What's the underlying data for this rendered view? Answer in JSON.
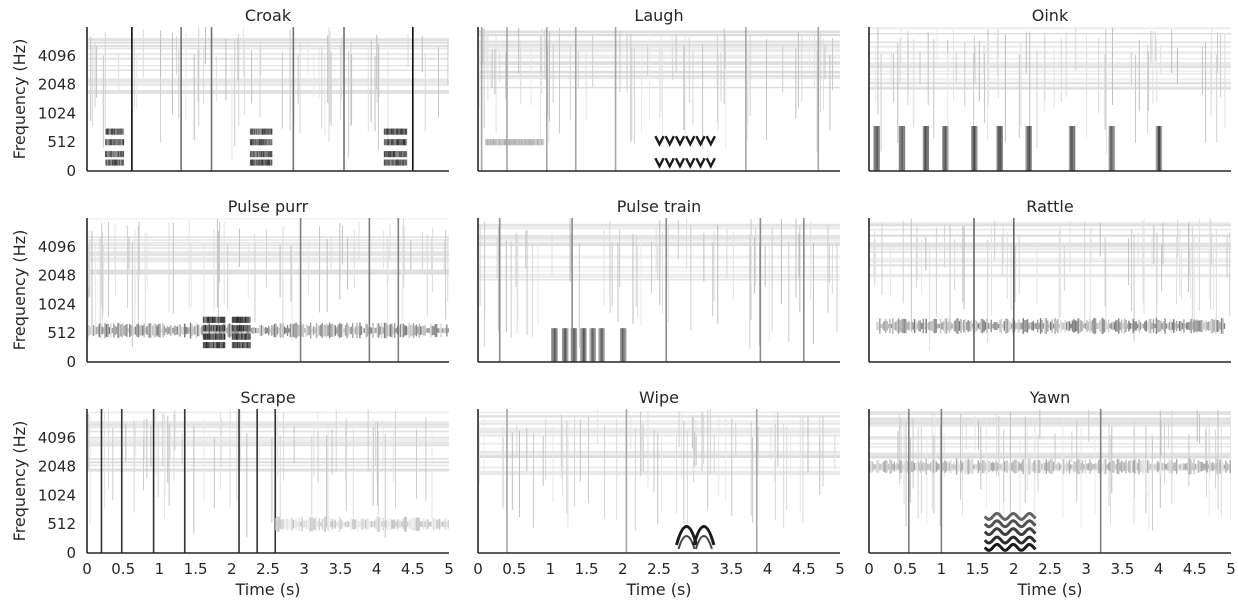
{
  "figure": {
    "ylabel": "Frequency (Hz)",
    "xlabel": "Time (s)",
    "colors": {
      "background": "#ffffff",
      "ink": "#262626",
      "spectrogram_cmap": "Greys"
    }
  },
  "chart_data": [
    {
      "type": "heatmap",
      "title": "Croak",
      "x_ticks": [
        "0",
        "0.5",
        "1",
        "1.5",
        "2",
        "2.5",
        "3",
        "3.5",
        "4",
        "4.5",
        "5"
      ],
      "y_ticks": [
        "0",
        "512",
        "1024",
        "2048",
        "4096"
      ],
      "xlim": [
        0,
        5
      ],
      "show_ylabel": true,
      "show_xlabel": false,
      "show_xticks": false,
      "events": [
        {
          "kind": "stack",
          "t0": 0.25,
          "t1": 0.5,
          "freqs": [
            150,
            300,
            512,
            700
          ],
          "strength": 0.8
        },
        {
          "kind": "stack",
          "t0": 2.25,
          "t1": 2.55,
          "freqs": [
            150,
            300,
            512,
            700
          ],
          "strength": 0.8
        },
        {
          "kind": "stack",
          "t0": 4.1,
          "t1": 4.4,
          "freqs": [
            150,
            300,
            512,
            700
          ],
          "strength": 0.8
        },
        {
          "kind": "vline",
          "times": [
            0.62,
            4.5
          ],
          "strength": 0.95
        },
        {
          "kind": "vline",
          "times": [
            1.3,
            1.72,
            2.85,
            3.55
          ],
          "strength": 0.55
        }
      ]
    },
    {
      "type": "heatmap",
      "title": "Laugh",
      "x_ticks": [
        "0",
        "0.5",
        "1",
        "1.5",
        "2",
        "2.5",
        "3",
        "3.5",
        "4",
        "4.5",
        "5"
      ],
      "y_ticks": [
        "0",
        "512",
        "1024",
        "2048",
        "4096"
      ],
      "xlim": [
        0,
        5
      ],
      "show_ylabel": false,
      "show_xlabel": false,
      "show_xticks": false,
      "events": [
        {
          "kind": "stack",
          "t0": 0.1,
          "t1": 0.9,
          "freqs": [
            512
          ],
          "strength": 0.35
        },
        {
          "kind": "chevrons",
          "t0": 2.45,
          "t1": 3.3,
          "freqs": [
            120,
            512
          ],
          "strength": 0.9
        },
        {
          "kind": "vline",
          "times": [
            0.05,
            0.4,
            0.95,
            1.35,
            1.9,
            3.7,
            4.7
          ],
          "strength": 0.35
        }
      ]
    },
    {
      "type": "heatmap",
      "title": "Oink",
      "x_ticks": [
        "0",
        "0.5",
        "1",
        "1.5",
        "2",
        "2.5",
        "3",
        "3.5",
        "4",
        "4.5",
        "5"
      ],
      "y_ticks": [
        "0",
        "512",
        "1024",
        "2048",
        "4096"
      ],
      "xlim": [
        0,
        5
      ],
      "show_ylabel": false,
      "show_xlabel": false,
      "show_xticks": false,
      "events": [
        {
          "kind": "pulses",
          "times": [
            0.1,
            0.45,
            0.78,
            1.05,
            1.45,
            1.8,
            2.2,
            2.8,
            3.35,
            4.0
          ],
          "fmax": 800,
          "strength": 0.85
        }
      ]
    },
    {
      "type": "heatmap",
      "title": "Pulse purr",
      "x_ticks": [
        "0",
        "0.5",
        "1",
        "1.5",
        "2",
        "2.5",
        "3",
        "3.5",
        "4",
        "4.5",
        "5"
      ],
      "y_ticks": [
        "0",
        "512",
        "1024",
        "2048",
        "4096"
      ],
      "xlim": [
        0,
        5
      ],
      "show_ylabel": true,
      "show_xlabel": false,
      "show_xticks": false,
      "events": [
        {
          "kind": "band",
          "t0": 0,
          "t1": 5,
          "freq": 560,
          "strength": 0.45
        },
        {
          "kind": "stack",
          "t0": 1.6,
          "t1": 1.9,
          "freqs": [
            300,
            450,
            600,
            750
          ],
          "strength": 0.85
        },
        {
          "kind": "stack",
          "t0": 2.0,
          "t1": 2.25,
          "freqs": [
            300,
            450,
            600,
            750
          ],
          "strength": 0.85
        },
        {
          "kind": "vline",
          "times": [
            2.95,
            3.9,
            4.3
          ],
          "strength": 0.5
        }
      ]
    },
    {
      "type": "heatmap",
      "title": "Pulse train",
      "x_ticks": [
        "0",
        "0.5",
        "1",
        "1.5",
        "2",
        "2.5",
        "3",
        "3.5",
        "4",
        "4.5",
        "5"
      ],
      "y_ticks": [
        "0",
        "512",
        "1024",
        "2048",
        "4096"
      ],
      "xlim": [
        0,
        5
      ],
      "show_ylabel": false,
      "show_xlabel": false,
      "show_xticks": false,
      "events": [
        {
          "kind": "pulses",
          "times": [
            1.05,
            1.2,
            1.32,
            1.45,
            1.58,
            1.7,
            2.0
          ],
          "fmax": 600,
          "strength": 0.8
        },
        {
          "kind": "vline",
          "times": [
            0.3,
            1.3,
            2.6,
            3.9,
            4.5
          ],
          "strength": 0.45
        }
      ]
    },
    {
      "type": "heatmap",
      "title": "Rattle",
      "x_ticks": [
        "0",
        "0.5",
        "1",
        "1.5",
        "2",
        "2.5",
        "3",
        "3.5",
        "4",
        "4.5",
        "5"
      ],
      "y_ticks": [
        "0",
        "512",
        "1024",
        "2048",
        "4096"
      ],
      "xlim": [
        0,
        5
      ],
      "show_ylabel": false,
      "show_xlabel": false,
      "show_xticks": false,
      "events": [
        {
          "kind": "band",
          "t0": 0.1,
          "t1": 4.9,
          "freq": 640,
          "strength": 0.45
        },
        {
          "kind": "vline",
          "times": [
            1.45,
            2.0
          ],
          "strength": 0.6
        }
      ]
    },
    {
      "type": "heatmap",
      "title": "Scrape",
      "x_ticks": [
        "0",
        "0.5",
        "1",
        "1.5",
        "2",
        "2.5",
        "3",
        "3.5",
        "4",
        "4.5",
        "5"
      ],
      "y_ticks": [
        "0",
        "512",
        "1024",
        "2048",
        "4096"
      ],
      "xlim": [
        0,
        5
      ],
      "show_ylabel": true,
      "show_xlabel": true,
      "show_xticks": true,
      "events": [
        {
          "kind": "vline",
          "times": [
            0.2,
            0.48,
            0.92,
            1.35,
            2.1,
            2.35,
            2.6
          ],
          "strength": 0.8
        },
        {
          "kind": "band",
          "t0": 2.6,
          "t1": 5,
          "freq": 512,
          "strength": 0.2
        }
      ]
    },
    {
      "type": "heatmap",
      "title": "Wipe",
      "x_ticks": [
        "0",
        "0.5",
        "1",
        "1.5",
        "2",
        "2.5",
        "3",
        "3.5",
        "4",
        "4.5",
        "5"
      ],
      "y_ticks": [
        "0",
        "512",
        "1024",
        "2048",
        "4096"
      ],
      "xlim": [
        0,
        5
      ],
      "show_ylabel": false,
      "show_xlabel": true,
      "show_xticks": true,
      "events": [
        {
          "kind": "arches",
          "times": [
            2.88,
            3.12
          ],
          "strength": 0.9
        },
        {
          "kind": "vline",
          "times": [
            0.4,
            2.05,
            3.85
          ],
          "strength": 0.35
        }
      ]
    },
    {
      "type": "heatmap",
      "title": "Yawn",
      "x_ticks": [
        "0",
        "0.5",
        "1",
        "1.5",
        "2",
        "2.5",
        "3",
        "3.5",
        "4",
        "4.5",
        "5"
      ],
      "y_ticks": [
        "0",
        "512",
        "1024",
        "2048",
        "4096"
      ],
      "xlim": [
        0,
        5
      ],
      "show_ylabel": false,
      "show_xlabel": true,
      "show_xticks": true,
      "events": [
        {
          "kind": "harmonics",
          "t0": 1.6,
          "t1": 2.3,
          "freqs": [
            100,
            230,
            380,
            520,
            650
          ],
          "strength": 0.9
        },
        {
          "kind": "band",
          "t0": 0,
          "t1": 5,
          "freq": 2048,
          "strength": 0.3
        },
        {
          "kind": "vline",
          "times": [
            0.55,
            1.0,
            3.2
          ],
          "strength": 0.5
        }
      ]
    }
  ]
}
